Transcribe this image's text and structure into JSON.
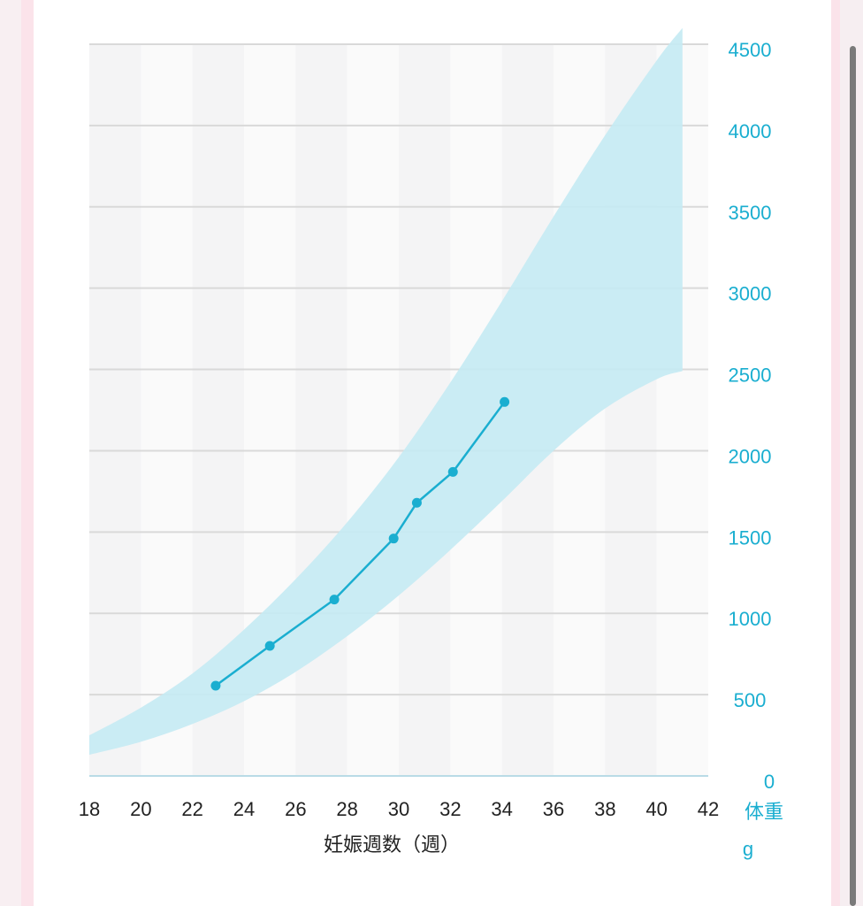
{
  "chart_data": {
    "type": "line",
    "xlabel": "妊娠週数（週）",
    "ylabel_line1": "体重",
    "ylabel_line2": "g",
    "xlim": [
      18,
      42
    ],
    "ylim": [
      0,
      4500
    ],
    "x_ticks": [
      "18",
      "20",
      "22",
      "24",
      "26",
      "28",
      "30",
      "32",
      "34",
      "36",
      "38",
      "40",
      "42"
    ],
    "y_ticks": [
      "0",
      "500",
      "1000",
      "1500",
      "2000",
      "2500",
      "3000",
      "3500",
      "4000",
      "4500"
    ],
    "grid": true,
    "colors": {
      "series": "#1aaed0",
      "band": "#c6eaf3",
      "axis": "#1aaed0"
    },
    "band": {
      "x": [
        18,
        20,
        22,
        24,
        26,
        28,
        30,
        32,
        34,
        36,
        38,
        40,
        41
      ],
      "lower": [
        130,
        210,
        320,
        460,
        640,
        860,
        1110,
        1390,
        1690,
        2000,
        2260,
        2440,
        2490
      ],
      "upper": [
        250,
        420,
        630,
        900,
        1210,
        1560,
        1960,
        2420,
        2920,
        3440,
        3940,
        4400,
        4600
      ]
    },
    "series": [
      {
        "x": [
          22.9,
          25.0,
          27.5,
          29.8,
          30.7,
          32.1,
          34.1
        ],
        "values": [
          555,
          800,
          1085,
          1460,
          1680,
          1870,
          2300
        ]
      }
    ]
  }
}
